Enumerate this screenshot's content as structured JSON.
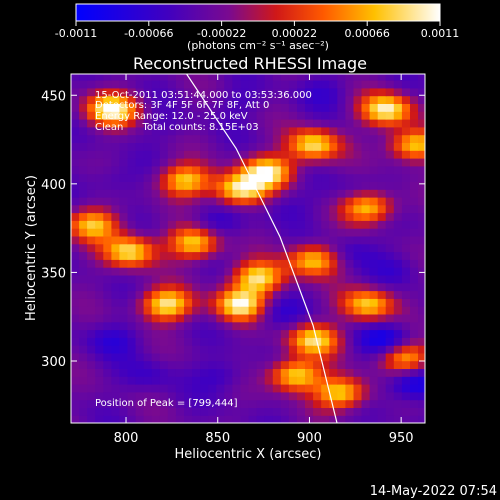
{
  "colorbar": {
    "ticks": [
      "-0.0011",
      "-0.00066",
      "-0.00022",
      "0.00022",
      "0.00066",
      "0.0011"
    ],
    "units": "(photons cm⁻² s⁻¹ asec⁻²)"
  },
  "title": "Reconstructed RHESSI Image",
  "annotations": {
    "line1": "15-Oct-2011 03:51:44.000 to 03:53:36.000",
    "line2": "Detectors: 3F 4F 5F 6F 7F 8F, Att 0",
    "line3": "Energy Range: 12.0 - 25.0 keV",
    "line4": "Clean      Total counts: 8.15E+03",
    "peak": "Position of Peak = [799,444]"
  },
  "footer_timestamp": "14-May-2022 07:54",
  "chart_data": {
    "type": "heatmap",
    "title": "Reconstructed RHESSI Image",
    "xlabel": "Heliocentric X (arcsec)",
    "ylabel": "Heliocentric Y (arcsec)",
    "xlim": [
      770,
      963
    ],
    "ylim": [
      265,
      462
    ],
    "xticks": [
      800,
      850,
      900,
      950
    ],
    "yticks": [
      300,
      350,
      400,
      450
    ],
    "colorbar_range": [
      -0.0011,
      0.0011
    ],
    "colormap": "blue-purple-red-yellow-white",
    "limb_line": [
      [
        833,
        462
      ],
      [
        860,
        420
      ],
      [
        884,
        370
      ],
      [
        902,
        320
      ],
      [
        915,
        265
      ]
    ],
    "peak_position": [
      799,
      444
    ],
    "bright_features": [
      {
        "x": 790,
        "y": 440,
        "intensity": 0.95
      },
      {
        "x": 830,
        "y": 400,
        "intensity": 0.7
      },
      {
        "x": 860,
        "y": 395,
        "intensity": 0.9
      },
      {
        "x": 875,
        "y": 405,
        "intensity": 0.85
      },
      {
        "x": 900,
        "y": 420,
        "intensity": 0.8
      },
      {
        "x": 940,
        "y": 440,
        "intensity": 0.9
      },
      {
        "x": 955,
        "y": 420,
        "intensity": 0.75
      },
      {
        "x": 800,
        "y": 360,
        "intensity": 0.8
      },
      {
        "x": 835,
        "y": 365,
        "intensity": 0.75
      },
      {
        "x": 870,
        "y": 345,
        "intensity": 0.8
      },
      {
        "x": 900,
        "y": 355,
        "intensity": 0.7
      },
      {
        "x": 930,
        "y": 385,
        "intensity": 0.7
      },
      {
        "x": 820,
        "y": 330,
        "intensity": 0.85
      },
      {
        "x": 860,
        "y": 330,
        "intensity": 0.9
      },
      {
        "x": 900,
        "y": 310,
        "intensity": 0.75
      },
      {
        "x": 930,
        "y": 330,
        "intensity": 0.7
      },
      {
        "x": 890,
        "y": 290,
        "intensity": 0.8
      },
      {
        "x": 915,
        "y": 280,
        "intensity": 0.75
      },
      {
        "x": 950,
        "y": 300,
        "intensity": 0.6
      },
      {
        "x": 780,
        "y": 375,
        "intensity": 0.65
      }
    ],
    "dark_features": [
      {
        "x": 790,
        "y": 400,
        "intensity": -0.5
      },
      {
        "x": 820,
        "y": 430,
        "intensity": -0.4
      },
      {
        "x": 845,
        "y": 375,
        "intensity": -0.6
      },
      {
        "x": 885,
        "y": 385,
        "intensity": -0.5
      },
      {
        "x": 920,
        "y": 360,
        "intensity": -0.55
      },
      {
        "x": 945,
        "y": 350,
        "intensity": -0.5
      },
      {
        "x": 880,
        "y": 325,
        "intensity": -0.6
      },
      {
        "x": 940,
        "y": 310,
        "intensity": -0.85
      },
      {
        "x": 955,
        "y": 285,
        "intensity": -0.9
      },
      {
        "x": 810,
        "y": 290,
        "intensity": -0.5
      },
      {
        "x": 850,
        "y": 290,
        "intensity": -0.55
      },
      {
        "x": 790,
        "y": 310,
        "intensity": -0.6
      },
      {
        "x": 905,
        "y": 450,
        "intensity": -0.5
      },
      {
        "x": 860,
        "y": 445,
        "intensity": -0.45
      },
      {
        "x": 925,
        "y": 395,
        "intensity": -0.45
      }
    ]
  }
}
